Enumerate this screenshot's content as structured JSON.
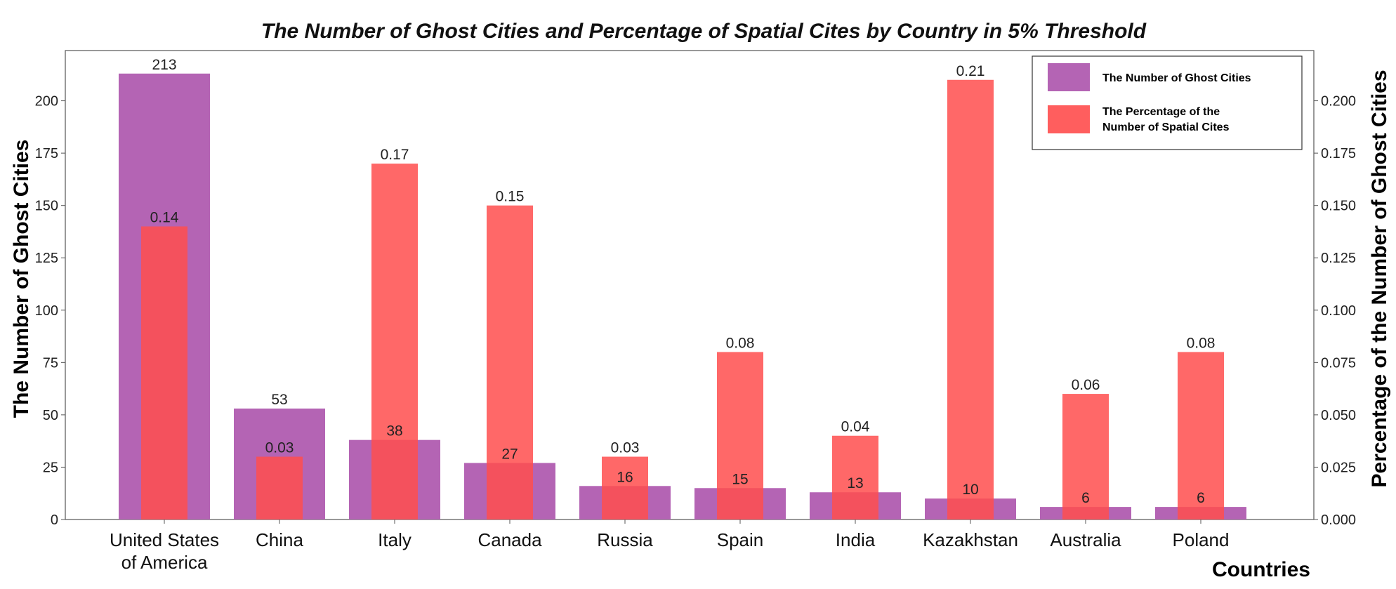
{
  "chart_data": {
    "type": "bar",
    "title": "The Number of Ghost Cities and Percentage of Spatial Cites by Country in 5% Threshold",
    "xlabel": "Countries",
    "ylabel": "The Number of Ghost Cities",
    "y2label": "Percentage of the Number of Ghost Cities",
    "categories": [
      [
        "United States",
        "of America"
      ],
      [
        "China"
      ],
      [
        "Italy"
      ],
      [
        "Canada"
      ],
      [
        "Russia"
      ],
      [
        "Spain"
      ],
      [
        "India"
      ],
      [
        "Kazakhstan"
      ],
      [
        "Australia"
      ],
      [
        "Poland"
      ]
    ],
    "ylim": [
      0,
      224
    ],
    "y2lim": [
      0,
      0.224
    ],
    "yticks": [
      0,
      25,
      50,
      75,
      100,
      125,
      150,
      175,
      200
    ],
    "y2ticks": [
      "0.000",
      "0.025",
      "0.050",
      "0.075",
      "0.100",
      "0.125",
      "0.150",
      "0.175",
      "0.200"
    ],
    "y2tick_values": [
      0,
      0.025,
      0.05,
      0.075,
      0.1,
      0.125,
      0.15,
      0.175,
      0.2
    ],
    "legend_position": "top-right",
    "series": [
      {
        "name": "The Number of Ghost Cities",
        "legend_lines": [
          "The Number of Ghost Cities"
        ],
        "axis": "left",
        "color": "#b464b4",
        "values": [
          213,
          53,
          38,
          27,
          16,
          15,
          13,
          10,
          6,
          6
        ],
        "labels": [
          "213",
          "53",
          "38",
          "27",
          "16",
          "15",
          "13",
          "10",
          "6",
          "6"
        ]
      },
      {
        "name": "The Percentage of the Number of Spatial Cites",
        "legend_lines": [
          "The Percentage of the",
          "Number of Spatial Cites"
        ],
        "axis": "right",
        "color": "#ff4d4d",
        "values": [
          0.14,
          0.03,
          0.17,
          0.15,
          0.03,
          0.08,
          0.04,
          0.21,
          0.06,
          0.08
        ],
        "labels": [
          "0.14",
          "0.03",
          "0.17",
          "0.15",
          "0.03",
          "0.08",
          "0.04",
          "0.21",
          "0.06",
          "0.08"
        ]
      }
    ]
  }
}
